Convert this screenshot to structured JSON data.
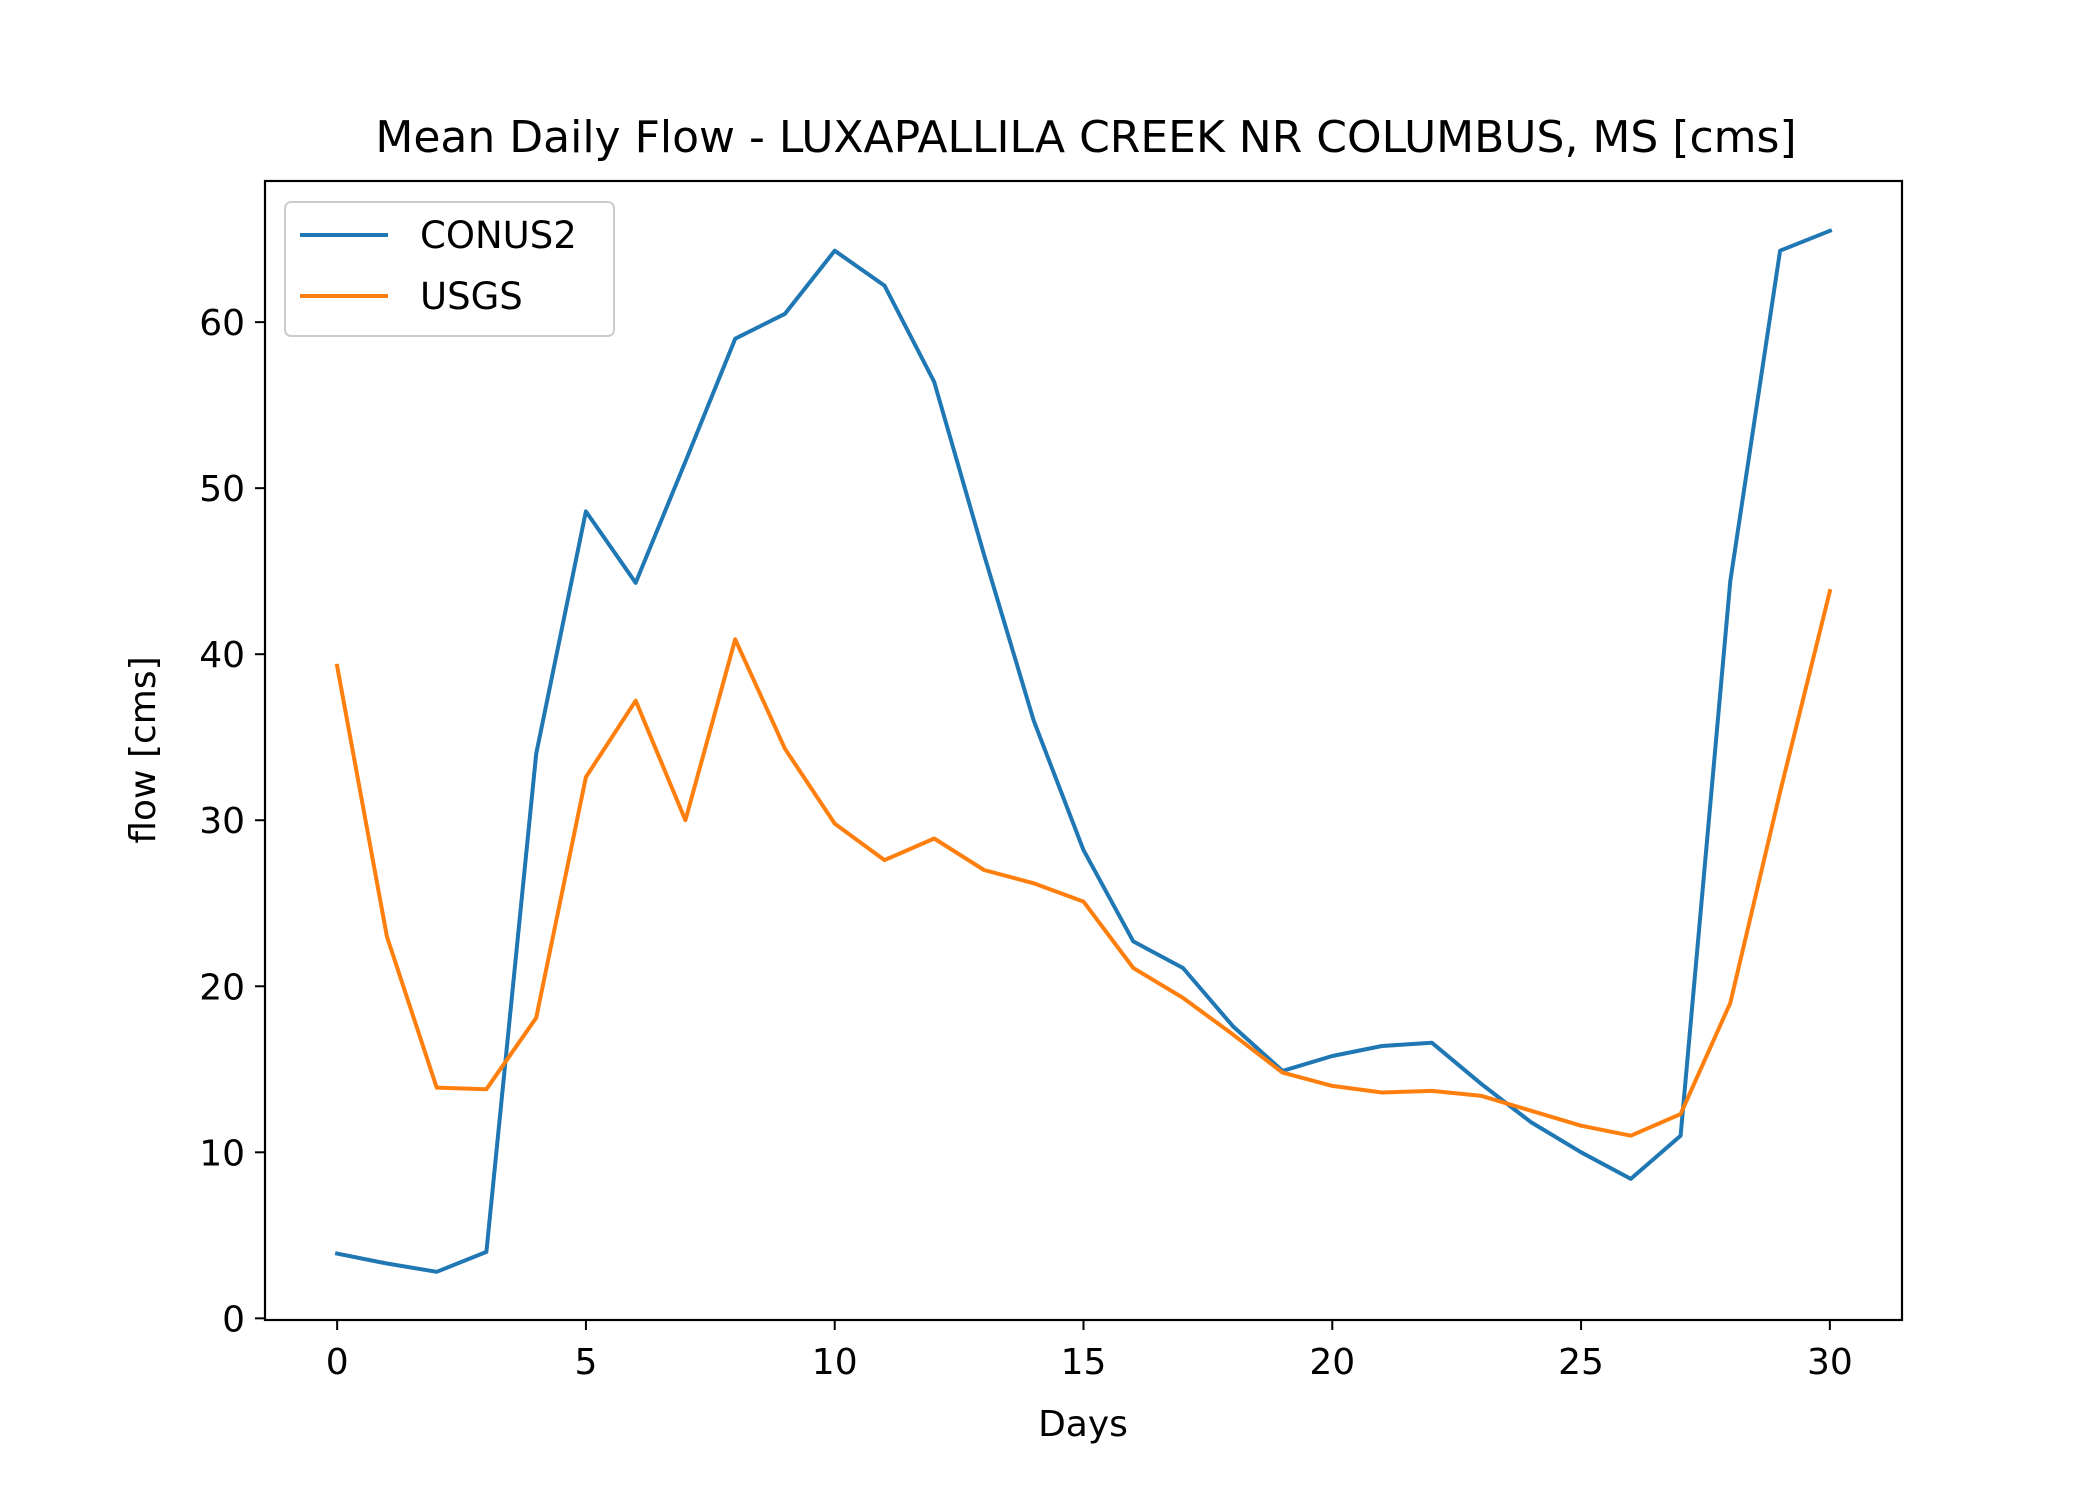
{
  "chart_data": {
    "type": "line",
    "title": "Mean Daily Flow - LUXAPALLILA CREEK NR COLUMBUS, MS [cms]",
    "xlabel": "Days",
    "ylabel": "flow [cms]",
    "xlim": [
      -1.45,
      31.45
    ],
    "ylim": [
      -0.1,
      68.5
    ],
    "xticks": [
      0,
      5,
      10,
      15,
      20,
      25,
      30
    ],
    "yticks": [
      0,
      10,
      20,
      30,
      40,
      50,
      60
    ],
    "grid": false,
    "legend_position": "upper-left",
    "x": [
      0,
      1,
      2,
      3,
      4,
      5,
      6,
      7,
      8,
      9,
      10,
      11,
      12,
      13,
      14,
      15,
      16,
      17,
      18,
      19,
      20,
      21,
      22,
      23,
      24,
      25,
      26,
      27,
      28,
      29,
      30
    ],
    "series": [
      {
        "name": "CONUS2",
        "color": "#1f77b4",
        "values": [
          3.9,
          3.3,
          2.8,
          4.0,
          34.0,
          48.6,
          44.3,
          51.6,
          59.0,
          60.5,
          64.3,
          62.2,
          56.4,
          46.0,
          36.0,
          28.2,
          22.7,
          21.1,
          17.6,
          14.9,
          15.8,
          16.4,
          16.6,
          14.1,
          11.8,
          10.0,
          8.4,
          11.0,
          44.4,
          64.3,
          65.5
        ]
      },
      {
        "name": "USGS",
        "color": "#ff7f0e",
        "values": [
          39.3,
          23.0,
          13.9,
          13.8,
          18.1,
          32.6,
          37.2,
          30.0,
          40.9,
          34.3,
          29.8,
          27.6,
          28.9,
          27.0,
          26.2,
          25.1,
          21.1,
          19.3,
          17.1,
          14.8,
          14.0,
          13.6,
          13.7,
          13.4,
          12.5,
          11.6,
          11.0,
          12.3,
          19.0,
          31.7,
          43.8
        ]
      }
    ]
  }
}
